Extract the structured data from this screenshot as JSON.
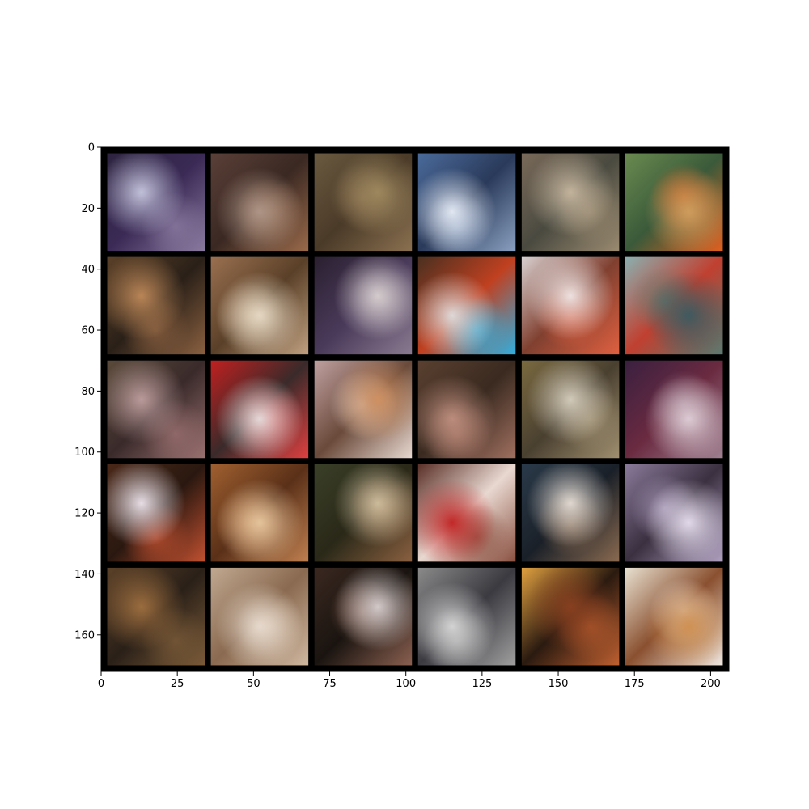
{
  "chart_data": {
    "type": "heatmap",
    "title": "",
    "xlabel": "",
    "ylabel": "",
    "xlim": [
      0,
      206
    ],
    "ylim": [
      172,
      0
    ],
    "grid": false,
    "image": {
      "rows": 5,
      "cols": 6,
      "tile_size": 32,
      "padding": 2,
      "padding_color": "#000000",
      "tiles": [
        {
          "name": "tile-r1-c1",
          "colors": [
            "#2d2440",
            "#c8c8e0",
            "#3a2a55",
            "#8a7aa0"
          ]
        },
        {
          "name": "tile-r1-c2",
          "colors": [
            "#5a4038",
            "#b0988a",
            "#3a2822",
            "#9a6a4a"
          ]
        },
        {
          "name": "tile-r1-c3",
          "colors": [
            "#6a5a40",
            "#a08a60",
            "#4a3a28",
            "#8a7050"
          ]
        },
        {
          "name": "tile-r1-c4",
          "colors": [
            "#4a6a9a",
            "#e8eef8",
            "#2a3a5a",
            "#8aa0c0"
          ]
        },
        {
          "name": "tile-r1-c5",
          "colors": [
            "#7a6a5a",
            "#c8b8a0",
            "#4a4a40",
            "#9a8a70"
          ]
        },
        {
          "name": "tile-r1-c6",
          "colors": [
            "#6a8a50",
            "#d0a060",
            "#3a5a3a",
            "#e06020"
          ]
        },
        {
          "name": "tile-r2-c1",
          "colors": [
            "#5a4028",
            "#c08a5a",
            "#2a2018",
            "#8a6040"
          ]
        },
        {
          "name": "tile-r2-c2",
          "colors": [
            "#9a7050",
            "#e8dcc8",
            "#5a4028",
            "#c0a080"
          ]
        },
        {
          "name": "tile-r2-c3",
          "colors": [
            "#2a2030",
            "#d8d0d0",
            "#4a3a5a",
            "#8a7a90"
          ]
        },
        {
          "name": "tile-r2-c4",
          "colors": [
            "#4a3020",
            "#e0e0e0",
            "#c04020",
            "#30b0e0"
          ]
        },
        {
          "name": "tile-r2-c5",
          "colors": [
            "#d8d0d0",
            "#f0e8e8",
            "#804030",
            "#e06040"
          ]
        },
        {
          "name": "tile-r2-c6",
          "colors": [
            "#8ab0b0",
            "#3a5a60",
            "#c04030",
            "#5a7a70"
          ]
        },
        {
          "name": "tile-r3-c1",
          "colors": [
            "#5a4a3a",
            "#c0a0a0",
            "#3a2a2a",
            "#9a7070"
          ]
        },
        {
          "name": "tile-r3-c2",
          "colors": [
            "#c02020",
            "#e8e0e0",
            "#3a2a2a",
            "#e04040"
          ]
        },
        {
          "name": "tile-r3-c3",
          "colors": [
            "#c0a0a0",
            "#d09060",
            "#6a4a3a",
            "#e8d8d0"
          ]
        },
        {
          "name": "tile-r3-c4",
          "colors": [
            "#5a4030",
            "#c09080",
            "#3a2a20",
            "#a07060"
          ]
        },
        {
          "name": "tile-r3-c5",
          "colors": [
            "#7a6a40",
            "#d8d0c0",
            "#4a4030",
            "#a09070"
          ]
        },
        {
          "name": "tile-r3-c6",
          "colors": [
            "#3a2040",
            "#e0d0d8",
            "#6a2a40",
            "#a08090"
          ]
        },
        {
          "name": "tile-r4-c1",
          "colors": [
            "#4a2818",
            "#f0e8f0",
            "#2a1810",
            "#c05030"
          ]
        },
        {
          "name": "tile-r4-c2",
          "colors": [
            "#a06030",
            "#e8c8a0",
            "#5a3018",
            "#c08050"
          ]
        },
        {
          "name": "tile-r4-c3",
          "colors": [
            "#3a4028",
            "#d0c0a0",
            "#2a2818",
            "#8a6040"
          ]
        },
        {
          "name": "tile-r4-c4",
          "colors": [
            "#5a3028",
            "#c02020",
            "#e8d8d0",
            "#8a5040"
          ]
        },
        {
          "name": "tile-r4-c5",
          "colors": [
            "#2a3a4a",
            "#e8e0d8",
            "#1a2028",
            "#8a6a50"
          ]
        },
        {
          "name": "tile-r4-c6",
          "colors": [
            "#8a7a9a",
            "#e8e0f0",
            "#3a3040",
            "#b0a0c0"
          ]
        },
        {
          "name": "tile-r5-c1",
          "colors": [
            "#5a4028",
            "#a07040",
            "#2a2018",
            "#7a5a38"
          ]
        },
        {
          "name": "tile-r5-c2",
          "colors": [
            "#c0a890",
            "#e8dcd0",
            "#8a6a50",
            "#d0b8a0"
          ]
        },
        {
          "name": "tile-r5-c3",
          "colors": [
            "#3a2820",
            "#d8d0d0",
            "#1a1410",
            "#8a6050"
          ]
        },
        {
          "name": "tile-r5-c4",
          "colors": [
            "#8a8a8a",
            "#d8d8d8",
            "#3a3a40",
            "#a0a0a0"
          ]
        },
        {
          "name": "tile-r5-c5",
          "colors": [
            "#e0a040",
            "#8a4020",
            "#2a1a10",
            "#c06030"
          ]
        },
        {
          "name": "tile-r5-c6",
          "colors": [
            "#e8e0d0",
            "#d09050",
            "#8a5030",
            "#f0e8e0"
          ]
        }
      ]
    },
    "x_ticks": [
      0,
      25,
      50,
      75,
      100,
      125,
      150,
      175,
      200
    ],
    "y_ticks": [
      0,
      20,
      40,
      60,
      80,
      100,
      120,
      140,
      160
    ]
  }
}
